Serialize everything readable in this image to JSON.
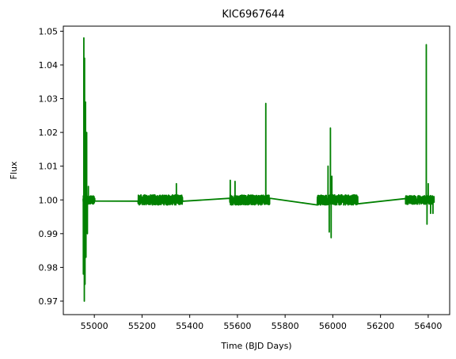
{
  "chart_data": {
    "type": "line",
    "title": "KIC6967644",
    "xlabel": "Time (BJD Days)",
    "ylabel": "Flux",
    "xlim": [
      54870,
      56490
    ],
    "ylim": [
      0.966,
      1.0515
    ],
    "xticks": [
      55000,
      55200,
      55400,
      55600,
      55800,
      56000,
      56200,
      56400
    ],
    "xtick_labels": [
      "55000",
      "55200",
      "55400",
      "55600",
      "55800",
      "56000",
      "56200",
      "56400"
    ],
    "yticks": [
      0.97,
      0.98,
      0.99,
      1.0,
      1.01,
      1.02,
      1.03,
      1.04,
      1.05
    ],
    "ytick_labels": [
      "0.97",
      "0.98",
      "0.99",
      "1.00",
      "1.01",
      "1.02",
      "1.03",
      "1.04",
      "1.05"
    ],
    "grid": false,
    "legend": "none",
    "line_color": "#008000",
    "series": [
      {
        "segments": [
          {
            "x_range": [
              54953,
              55002
            ],
            "baseline": 1.0,
            "noise": 0.0012,
            "spikes": [
              [
                54954,
                0.978
              ],
              [
                54956,
                1.048
              ],
              [
                54958,
                0.97
              ],
              [
                54959,
                1.042
              ],
              [
                54961,
                0.975
              ],
              [
                54963,
                1.029
              ],
              [
                54965,
                0.983
              ],
              [
                54968,
                1.02
              ],
              [
                54971,
                0.99
              ],
              [
                54975,
                1.004
              ]
            ]
          },
          {
            "x_range": [
              55183,
              55370
            ],
            "baseline": 1.0,
            "noise": 0.0015,
            "spikes": [
              [
                55344,
                1.0048
              ]
            ]
          },
          {
            "x_range": [
              55568,
              55735
            ],
            "baseline": 1.0,
            "noise": 0.0015,
            "spikes": [
              [
                55570,
                1.0058
              ],
              [
                55590,
                1.0055
              ],
              [
                55719,
                1.0286
              ],
              [
                55722,
                0.9988
              ]
            ]
          },
          {
            "x_range": [
              55735,
              55935
            ],
            "baseline": 1.0,
            "noise": 0.0,
            "spikes": [
              [
                55735,
                1.0005
              ],
              [
                55935,
                0.9985
              ]
            ]
          },
          {
            "x_range": [
              55935,
              56105
            ],
            "baseline": 1.0,
            "noise": 0.0015,
            "spikes": [
              [
                55980,
                1.01
              ],
              [
                55985,
                0.9905
              ],
              [
                55990,
                1.0213
              ],
              [
                55993,
                0.9888
              ],
              [
                55996,
                1.007
              ]
            ]
          },
          {
            "x_range": [
              56305,
              56425
            ],
            "baseline": 1.0,
            "noise": 0.0013,
            "spikes": [
              [
                56392,
                1.046
              ],
              [
                56395,
                0.9928
              ],
              [
                56400,
                1.0048
              ],
              [
                56410,
                0.996
              ],
              [
                56420,
                0.996
              ]
            ]
          }
        ]
      }
    ]
  }
}
